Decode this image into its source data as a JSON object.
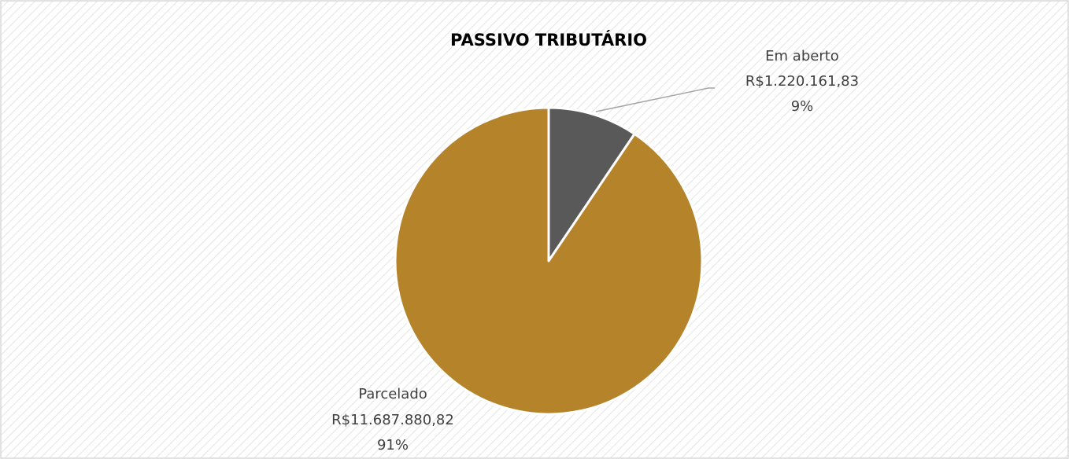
{
  "chart_data": {
    "type": "pie",
    "title": "PASSIVO TRIBUTÁRIO",
    "categories": [
      "Em aberto",
      "Parcelado"
    ],
    "values": [
      1220161.83,
      11687880.82
    ],
    "value_labels": [
      "R$1.220.161,83",
      "R$11.687.880,82"
    ],
    "percentages": [
      9,
      91
    ],
    "percentage_labels": [
      "9%",
      "91%"
    ],
    "colors": [
      "#595959",
      "#b5832a"
    ]
  }
}
